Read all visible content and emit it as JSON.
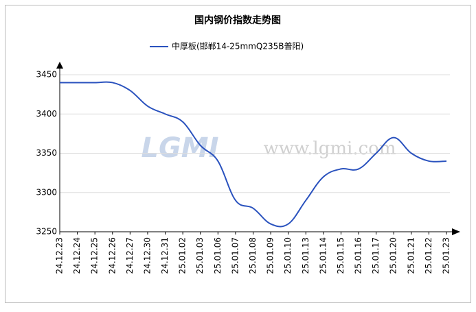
{
  "chart_data": {
    "type": "line",
    "title": "国内钢价指数走势图",
    "watermark": [
      "LGMI",
      "www.lgmi.com"
    ],
    "categories": [
      "24.12.23",
      "24.12.24",
      "24.12.25",
      "24.12.26",
      "24.12.27",
      "24.12.30",
      "24.12.31",
      "25.01.02",
      "25.01.03",
      "25.01.06",
      "25.01.07",
      "25.01.08",
      "25.01.09",
      "25.01.10",
      "25.01.13",
      "25.01.14",
      "25.01.15",
      "25.01.16",
      "25.01.17",
      "25.01.20",
      "25.01.21",
      "25.01.22",
      "25.01.23"
    ],
    "series": [
      {
        "name": "中厚板(邯郸14-25mmQ235B普阳)",
        "color": "#2a52be",
        "values": [
          3440,
          3440,
          3440,
          3440,
          3430,
          3410,
          3400,
          3390,
          3360,
          3340,
          3290,
          3280,
          3260,
          3260,
          3290,
          3320,
          3330,
          3330,
          3350,
          3370,
          3350,
          3340,
          3340
        ]
      }
    ],
    "ylim": [
      3250,
      3450
    ],
    "yticks": [
      3250,
      3300,
      3350,
      3400,
      3450
    ],
    "grid": true
  }
}
